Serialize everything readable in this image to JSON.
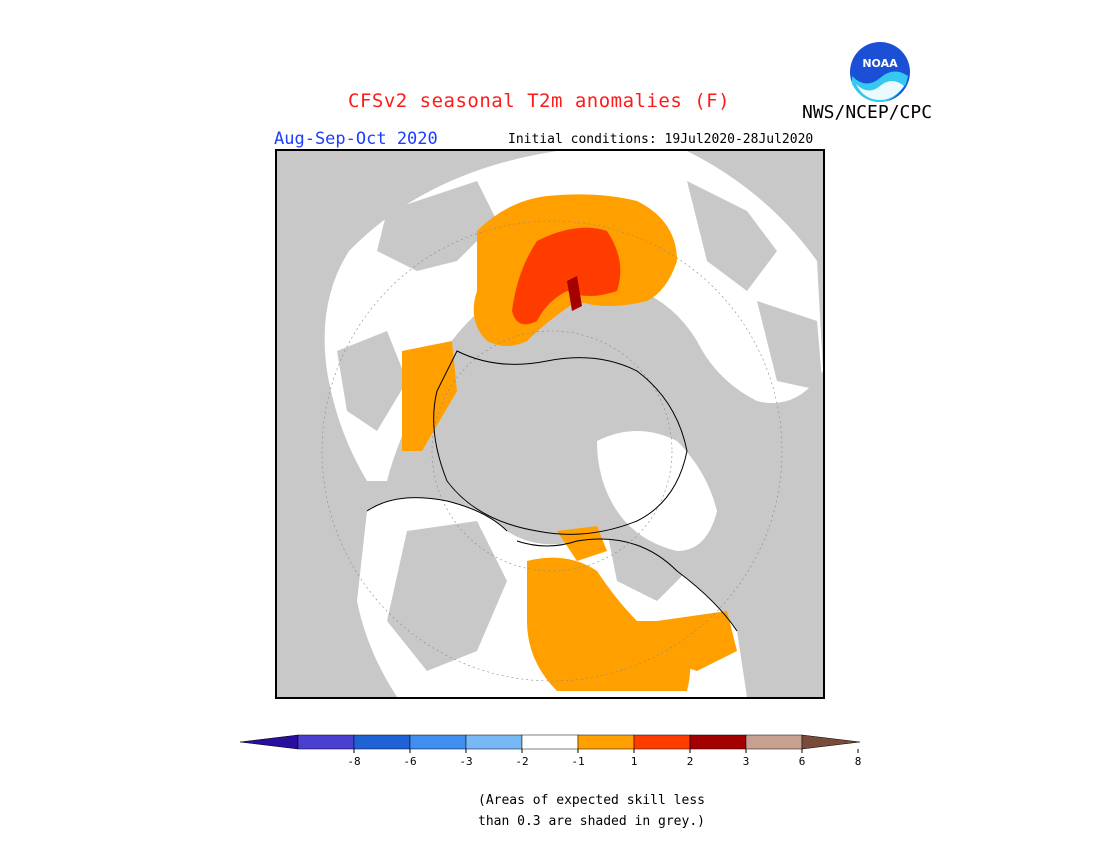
{
  "header": {
    "title": "CFSv2 seasonal T2m anomalies (F)",
    "agency": "NWS/NCEP/CPC",
    "season": "Aug-Sep-Oct 2020",
    "initial_conditions": "Initial conditions: 19Jul2020-28Jul2020",
    "logo_text": "NOAA"
  },
  "legend": {
    "tick_labels": [
      "-8",
      "-6",
      "-3",
      "-2",
      "-1",
      "1",
      "2",
      "3",
      "6",
      "8"
    ],
    "bins": [
      {
        "color": "#2a0f9e"
      },
      {
        "color": "#4a3fd0"
      },
      {
        "color": "#1f62d6"
      },
      {
        "color": "#3f8ef0"
      },
      {
        "color": "#78b8f5"
      },
      {
        "color": "#ffffff"
      },
      {
        "color": "#ffa000"
      },
      {
        "color": "#ff3c00"
      },
      {
        "color": "#a50000"
      },
      {
        "color": "#c8a090"
      },
      {
        "color": "#7a4a3a"
      }
    ]
  },
  "map": {
    "projection": "north polar stereographic",
    "land_color": "#ffffff",
    "masked_color": "#c8c8c8",
    "anomaly_colors": {
      "plus_1_to_2": "#ffa000",
      "plus_2_to_3": "#ff3c00",
      "plus_3_to_6": "#a50000"
    }
  },
  "footnote": {
    "line1": "(Areas of expected skill less",
    "line2": "than 0.3 are shaded in grey.)"
  }
}
